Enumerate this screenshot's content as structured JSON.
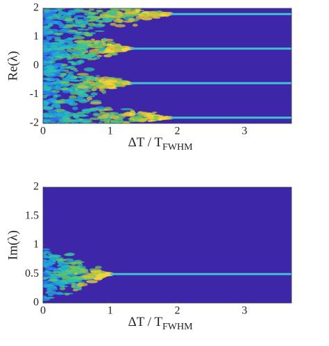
{
  "chart_data": [
    {
      "type": "heatmap",
      "ylabel": "Re(λ)",
      "xlabel": "ΔT / T",
      "xlabel_sub": "FWHM",
      "xlim": [
        0,
        3.7
      ],
      "ylim": [
        -2,
        2
      ],
      "xticks": [
        0,
        1,
        2,
        3
      ],
      "yticks": [
        -2,
        -1,
        0,
        1,
        2
      ],
      "background": "#3e26a8",
      "level_color": "#3fc1cf",
      "levels": {
        "values": [
          1.8,
          0.6,
          -0.6,
          -1.8
        ],
        "x_start": [
          1.9,
          1.3,
          1.3,
          1.9
        ]
      }
    },
    {
      "type": "heatmap",
      "ylabel": "Im(λ)",
      "xlabel": "ΔT / T",
      "xlabel_sub": "FWHM",
      "xlim": [
        0,
        3.7
      ],
      "ylim": [
        0,
        2
      ],
      "xticks": [
        0,
        1,
        2,
        3
      ],
      "yticks": [
        0,
        0.5,
        1,
        1.5,
        2
      ],
      "background": "#3e26a8",
      "level_color": "#3fc1cf",
      "levels": {
        "values": [
          0.5
        ],
        "x_start": [
          1.0
        ]
      }
    }
  ]
}
